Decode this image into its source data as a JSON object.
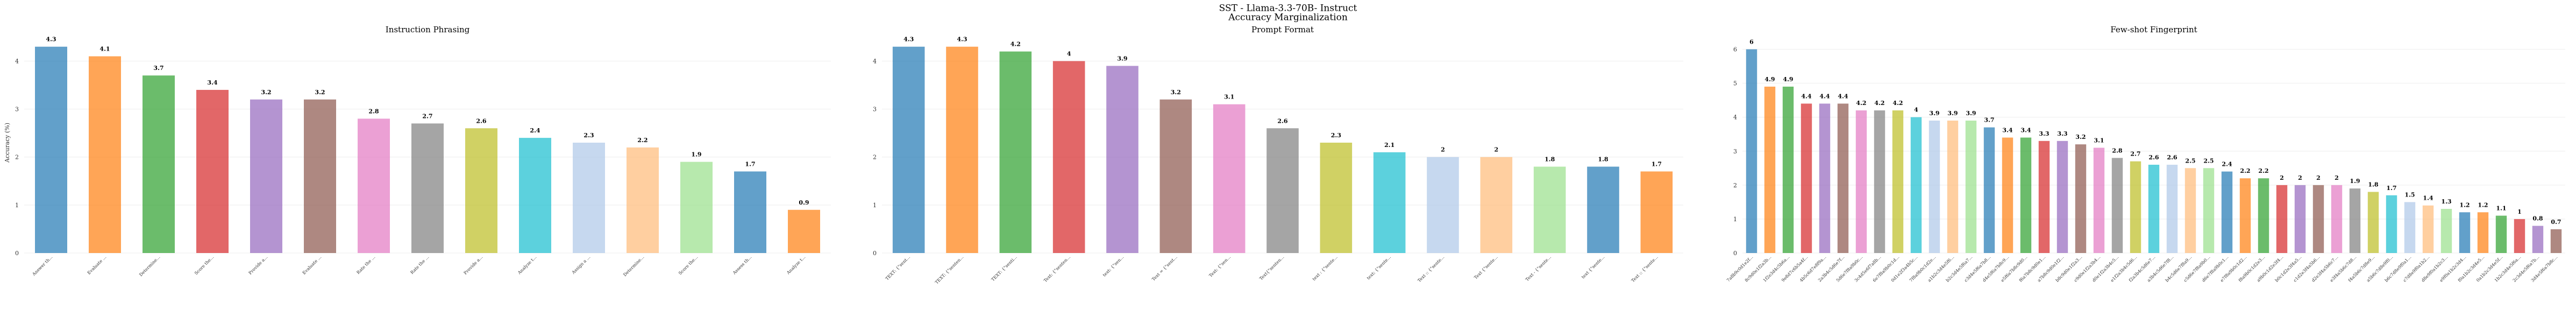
{
  "title": "SST - Llama-3.3-70B- Instruct",
  "subtitle": "Accuracy Marginalization",
  "chart_data": [
    {
      "type": "bar",
      "title": "Instruction Phrasing",
      "ylabel": "Accuracy (%)",
      "categories": [
        "Answer th...",
        "Evaluate ...",
        "Determine...",
        "Score the...",
        "Provide a...",
        "Evaluate ...",
        "Rate the ...",
        "Rate the ...",
        "Provide a...",
        "Analyze t...",
        "Assign a ...",
        "Determine...",
        "Score the...",
        "Assess th...",
        "Analyze t..."
      ],
      "values": [
        4.3,
        4.1,
        3.7,
        3.4,
        3.2,
        3.2,
        2.8,
        2.7,
        2.6,
        2.4,
        2.3,
        2.2,
        1.9,
        1.7,
        0.9
      ],
      "colors": [
        "#1f77b4",
        "#ff7f0e",
        "#2ca02c",
        "#d62728",
        "#9467bd",
        "#8c564b",
        "#e377c2",
        "#7f7f7f",
        "#bcbd22",
        "#17becf",
        "#aec7e8",
        "#ffbb78",
        "#98df8a"
      ],
      "ylim": [
        0,
        4.6
      ],
      "yticks": [
        0,
        1,
        2,
        3,
        4
      ],
      "grid": true
    },
    {
      "type": "bar",
      "title": "Prompt Format",
      "categories": [
        "TEXT: {\"sent...",
        "TEXT: {\"senten...",
        "TEXT: {\"senti...",
        "Text: {\"senten...",
        "text: {\"sen...",
        "Text = {\"sent...",
        "Text: {\"sen...",
        "Text{\"senten...",
        "text : {\"sente...",
        "text: {\"sente...",
        "Text :: {\"sente...",
        "Text {\"sente...",
        "Text - {\"sente...",
        "text {\"sente...",
        "Text :: {\"sente..."
      ],
      "values": [
        4.3,
        4.3,
        4.2,
        4.0,
        3.9,
        3.2,
        3.1,
        2.6,
        2.3,
        2.1,
        2.0,
        2.0,
        1.8,
        1.8,
        1.7
      ],
      "colors": [
        "#1f77b4",
        "#ff7f0e",
        "#2ca02c",
        "#d62728",
        "#9467bd",
        "#8c564b",
        "#e377c2",
        "#7f7f7f",
        "#bcbd22",
        "#17becf",
        "#aec7e8",
        "#ffbb78",
        "#98df8a"
      ],
      "ylim": [
        0,
        4.6
      ],
      "yticks": [
        0,
        1,
        2,
        3,
        4
      ],
      "grid": true
    },
    {
      "type": "bar",
      "title": "Few-shot Fingerprint",
      "categories": [
        "7a8b9c0d1e2f...",
        "8c9d0e1f2a3b...",
        "1f2e3d4c5b6a...",
        "9e8d7c6b5a4f...",
        "4b5c6d7e8f9a...",
        "2a3b4c5d6e7f...",
        "5d6e7f8a9b0c...",
        "3c4d5e6f7a8b...",
        "6e7f8a9b0c1d...",
        "0d1e2f3a4b5c...",
        "7f8a9b0c1d2e...",
        "a1b2c3d4e5f6...",
        "b2c3d4e5f6a7...",
        "c3d4e5f6a7b8...",
        "d4e5f6a7b8c9...",
        "e5f6a7b8c9d0...",
        "f6a7b8c9d0e1...",
        "a7b8c9d0e1f2...",
        "b8c9d0e1f2a3...",
        "c9d0e1f2a3b4...",
        "d0e1f2a3b4c5...",
        "e1f2a3b4c5d6...",
        "f2a3b4c5d6e7...",
        "a3b4c5d6e7f8...",
        "b4c5d6e7f8a9...",
        "c5d6e7f8a9b0...",
        "d6e7f8a9b0c1...",
        "e7f8a9b0c1d2...",
        "f8a9b0c1d2e3...",
        "a9b0c1d2e3f4...",
        "b0c1d2e3f4a5...",
        "c1d2e3f4a5b6...",
        "d2e3f4a5b6c7...",
        "e3f4a5b6c7d8...",
        "f4a5b6c7d8e9...",
        "a5b6c7d8e9f0...",
        "b6c7d8e9f0a1...",
        "c7d8e9f0a1b2...",
        "d8e9f0a1b2c3...",
        "e9f0a1b2c3d4...",
        "f0a1b2c3d4e5...",
        "0a1b2c3d4e5f...",
        "1b2c3d4e5f6a...",
        "2c3d4e5f6a7b...",
        "3d4e5f6a7b8c..."
      ],
      "values": [
        6.0,
        4.9,
        4.9,
        4.4,
        4.4,
        4.4,
        4.2,
        4.2,
        4.2,
        4.0,
        3.9,
        3.9,
        3.9,
        3.7,
        3.4,
        3.4,
        3.3,
        3.3,
        3.2,
        3.1,
        2.8,
        2.7,
        2.6,
        2.6,
        2.5,
        2.5,
        2.4,
        2.2,
        2.2,
        2.0,
        2.0,
        2.0,
        2.0,
        1.9,
        1.8,
        1.7,
        1.5,
        1.4,
        1.3,
        1.2,
        1.2,
        1.1,
        1.0,
        0.8,
        0.7
      ],
      "colors": [
        "#1f77b4",
        "#ff7f0e",
        "#2ca02c",
        "#d62728",
        "#9467bd",
        "#8c564b",
        "#e377c2",
        "#7f7f7f",
        "#bcbd22",
        "#17becf",
        "#aec7e8",
        "#ffbb78",
        "#98df8a"
      ],
      "ylim": [
        0,
        6.5
      ],
      "yticks": [
        0,
        1,
        2,
        3,
        4,
        5,
        6
      ],
      "grid": true
    }
  ]
}
